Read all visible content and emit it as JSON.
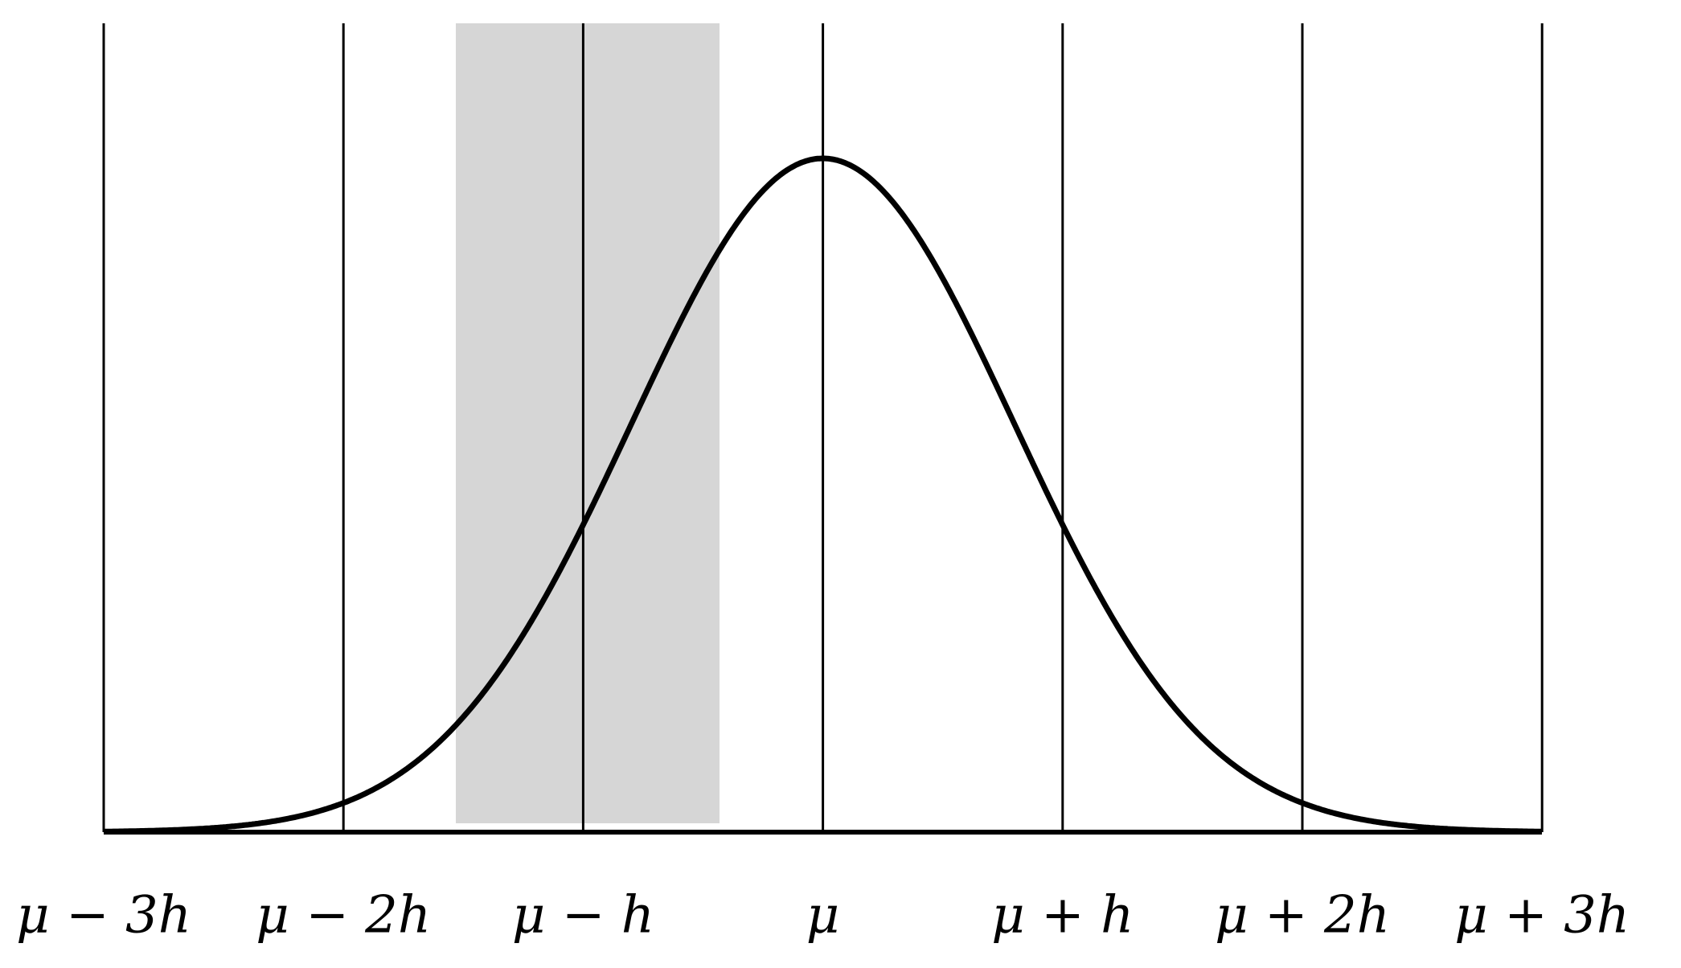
{
  "axis": {
    "labels": [
      "μ − 3h",
      "μ − 2h",
      "μ − h",
      "μ",
      "μ + h",
      "μ + 2h",
      "μ + 3h"
    ]
  }
}
